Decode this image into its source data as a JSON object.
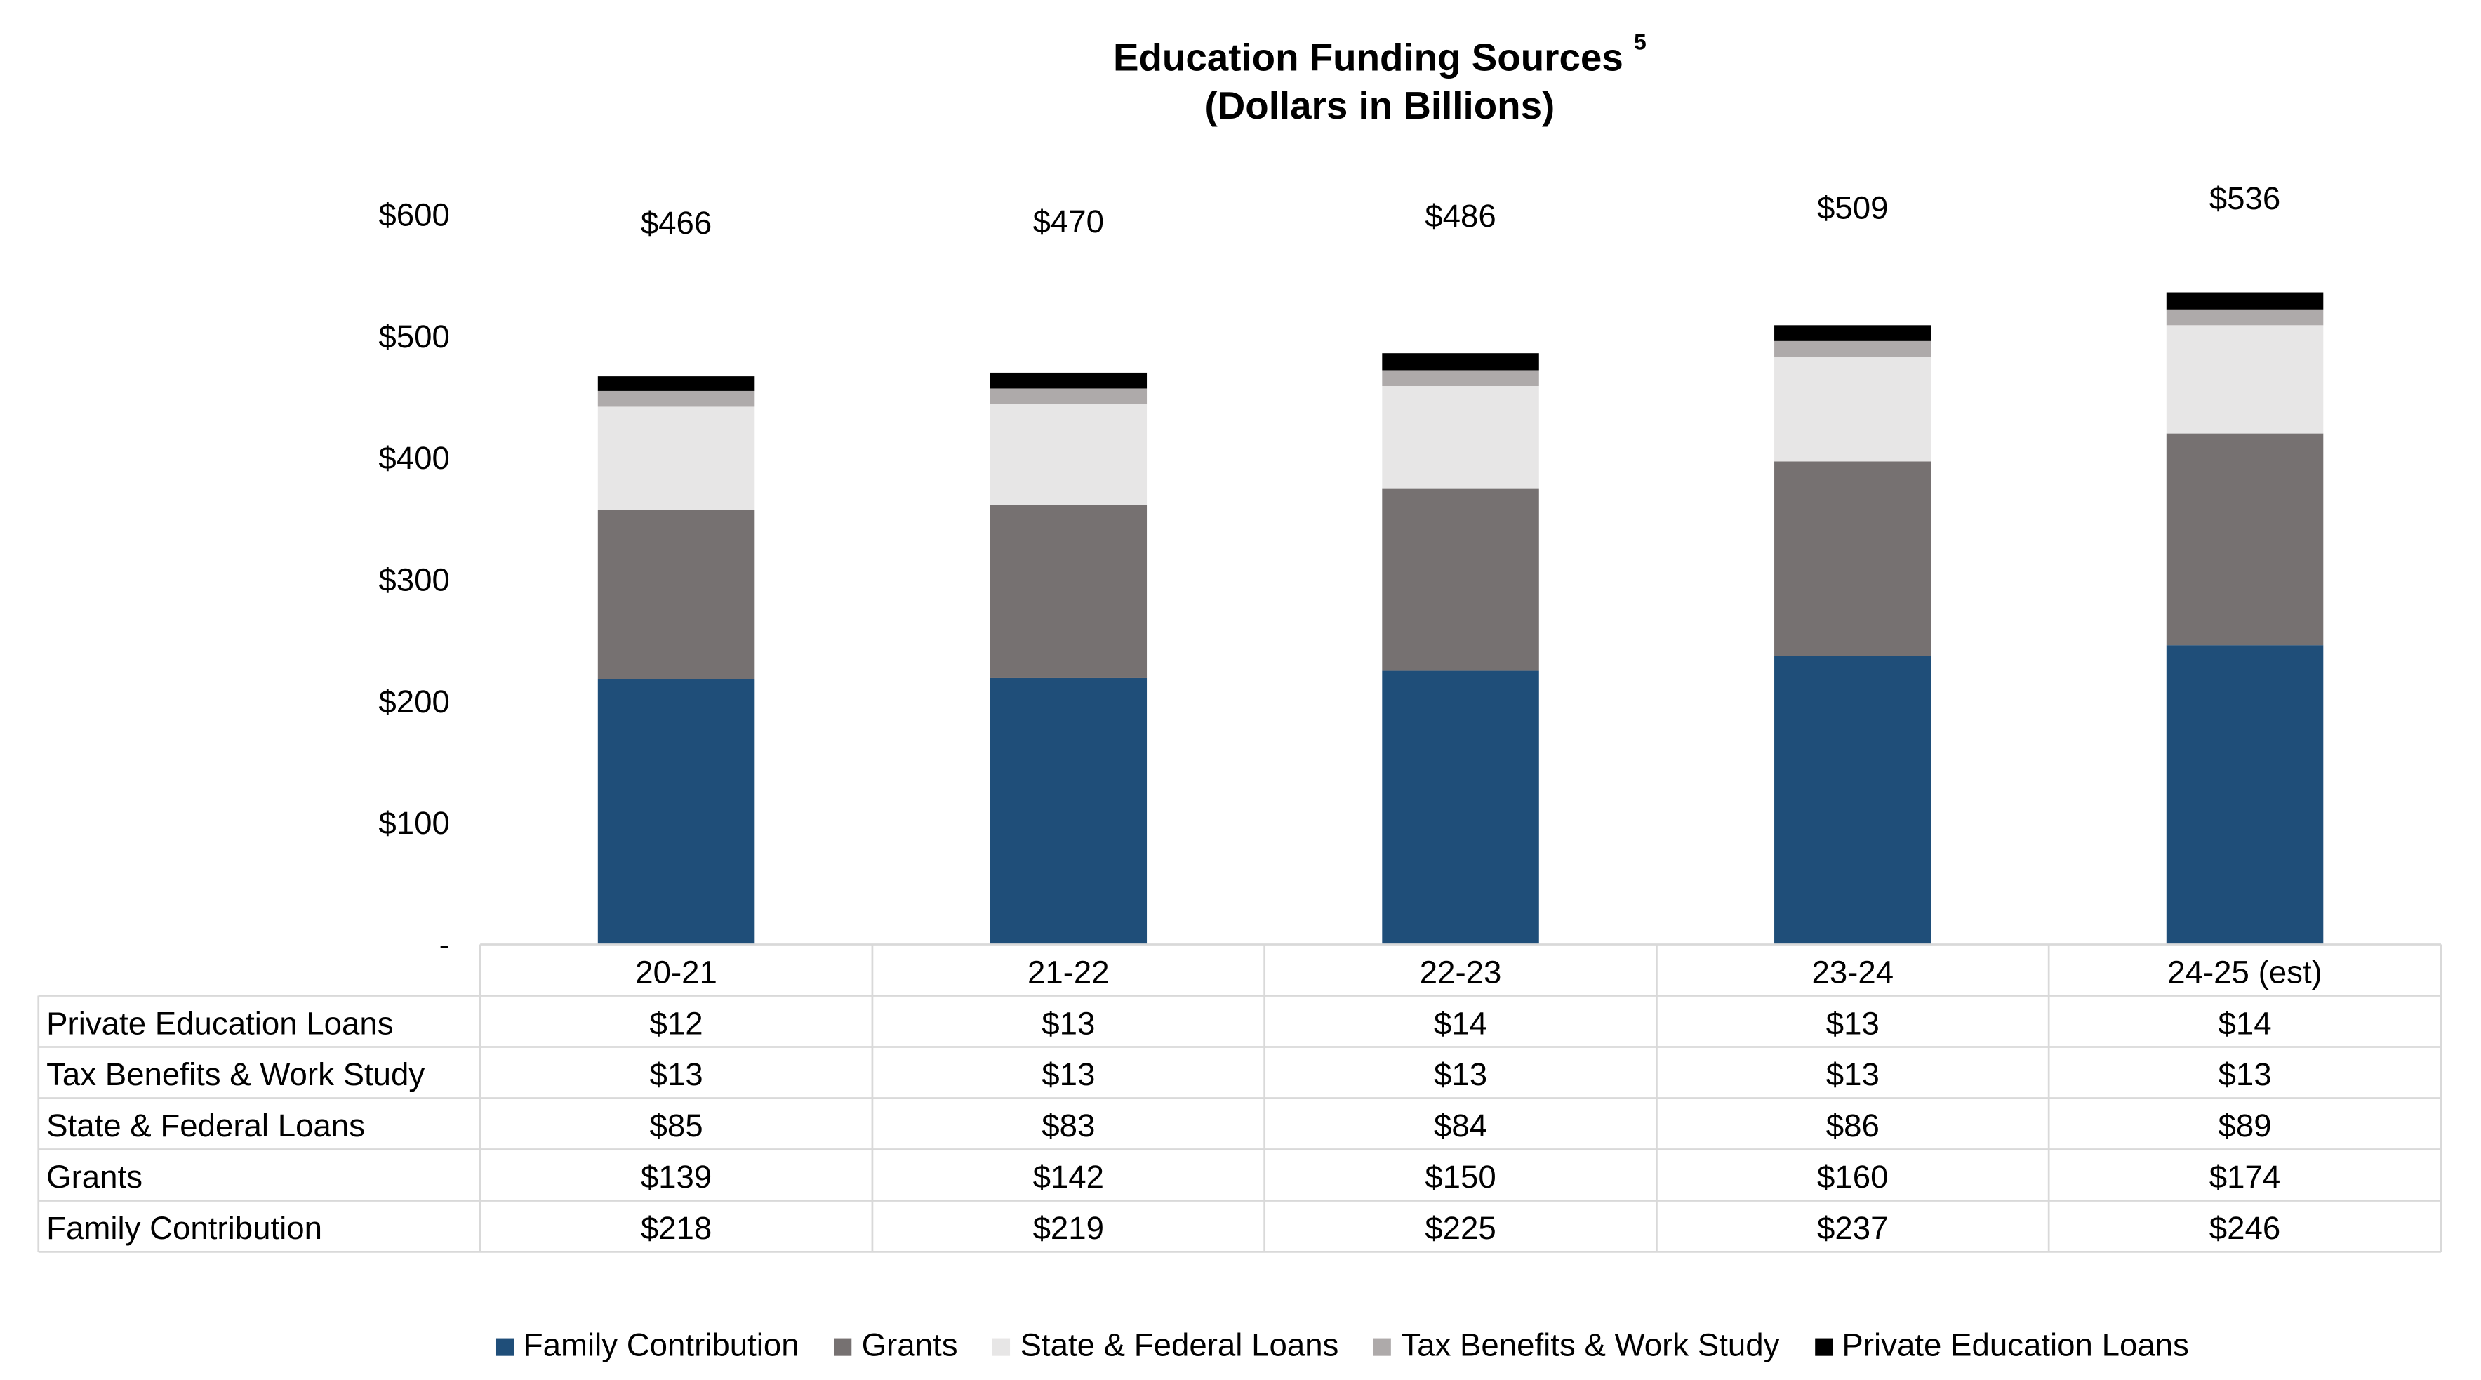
{
  "chart_data": {
    "type": "bar",
    "stacked": true,
    "title": "Education Funding Sources",
    "title_superscript": "5",
    "subtitle": "(Dollars in Billions)",
    "categories": [
      "20-21",
      "21-22",
      "22-23",
      "23-24",
      "24-25 (est)"
    ],
    "series": [
      {
        "name": "Family Contribution",
        "color": "#1f4e79",
        "values": [
          218,
          219,
          225,
          237,
          246
        ],
        "labels": [
          "$218",
          "$219",
          "$225",
          "$237",
          "$246"
        ]
      },
      {
        "name": "Grants",
        "color": "#767171",
        "values": [
          139,
          142,
          150,
          160,
          174
        ],
        "labels": [
          "$139",
          "$142",
          "$150",
          "$160",
          "$174"
        ]
      },
      {
        "name": "State & Federal Loans",
        "color": "#e7e6e6",
        "values": [
          85,
          83,
          84,
          86,
          89
        ],
        "labels": [
          "$85",
          "$83",
          "$84",
          "$86",
          "$89"
        ]
      },
      {
        "name": "Tax Benefits & Work Study",
        "color": "#aeaaaa",
        "values": [
          13,
          13,
          13,
          13,
          13
        ],
        "labels": [
          "$13",
          "$13",
          "$13",
          "$13",
          "$13"
        ]
      },
      {
        "name": "Private Education Loans",
        "color": "#000000",
        "values": [
          12,
          13,
          14,
          13,
          14
        ],
        "labels": [
          "$12",
          "$13",
          "$14",
          "$13",
          "$14"
        ]
      }
    ],
    "totals": [
      "$466",
      "$470",
      "$486",
      "$509",
      "$536"
    ],
    "total_values": [
      466,
      470,
      486,
      509,
      536
    ],
    "yticks": [
      "-",
      "$100",
      "$200",
      "$300",
      "$400",
      "$500",
      "$600"
    ],
    "ylim": [
      0,
      600
    ],
    "table_row_order": [
      4,
      3,
      2,
      1,
      0
    ],
    "grid": false,
    "legend_position": "bottom"
  }
}
